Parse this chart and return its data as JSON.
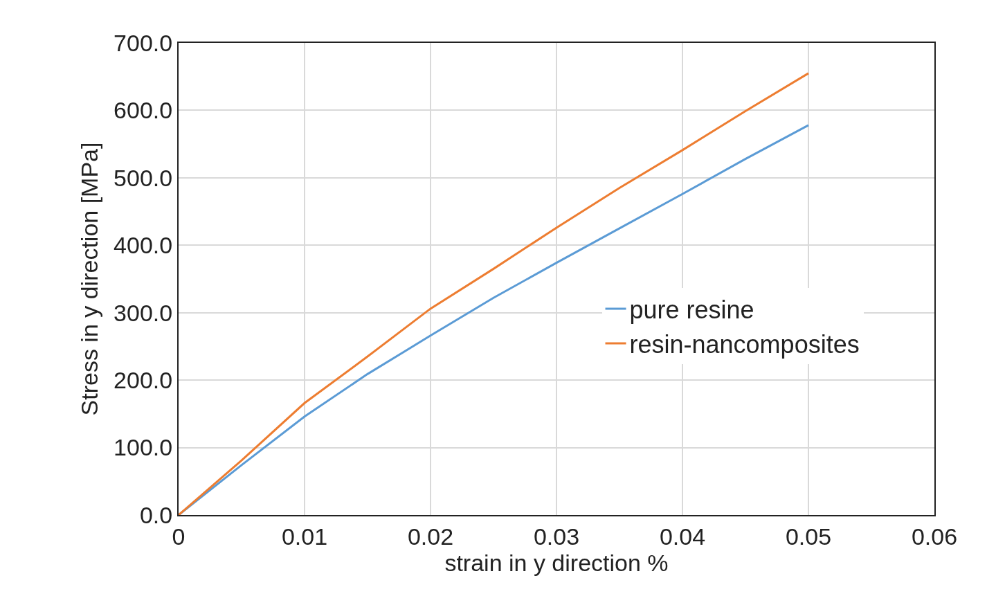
{
  "chart_data": {
    "type": "line",
    "xlabel": "strain in y direction %",
    "ylabel": "Stress in y direction [MPa]",
    "x": [
      0,
      0.005,
      0.01,
      0.015,
      0.02,
      0.025,
      0.03,
      0.035,
      0.04,
      0.045,
      0.05
    ],
    "series": [
      {
        "name": "pure resine",
        "color": "#5b9bd5",
        "values": [
          0,
          74,
          146,
          209,
          266,
          322,
          374,
          425,
          476,
          528,
          578
        ]
      },
      {
        "name": "resin-nancomposites",
        "color": "#ed7d31",
        "values": [
          0,
          81,
          166,
          235,
          306,
          365,
          426,
          485,
          541,
          599,
          655
        ]
      }
    ],
    "xlim": [
      0,
      0.06
    ],
    "xticks": [
      0,
      0.01,
      0.02,
      0.03,
      0.04,
      0.05,
      0.06
    ],
    "ylim": [
      0,
      700
    ],
    "yticks": [
      {
        "value": 0,
        "label": "0.0"
      },
      {
        "value": 100,
        "label": "100.0"
      },
      {
        "value": 200,
        "label": "200.0"
      },
      {
        "value": 300,
        "label": "300.0"
      },
      {
        "value": 400,
        "label": "400.0"
      },
      {
        "value": 500,
        "label": "500.0"
      },
      {
        "value": 600,
        "label": "600.0"
      },
      {
        "value": 700,
        "label": "700.0"
      }
    ],
    "grid": true,
    "legend": "right",
    "marker": "none",
    "line_style": "solid"
  }
}
